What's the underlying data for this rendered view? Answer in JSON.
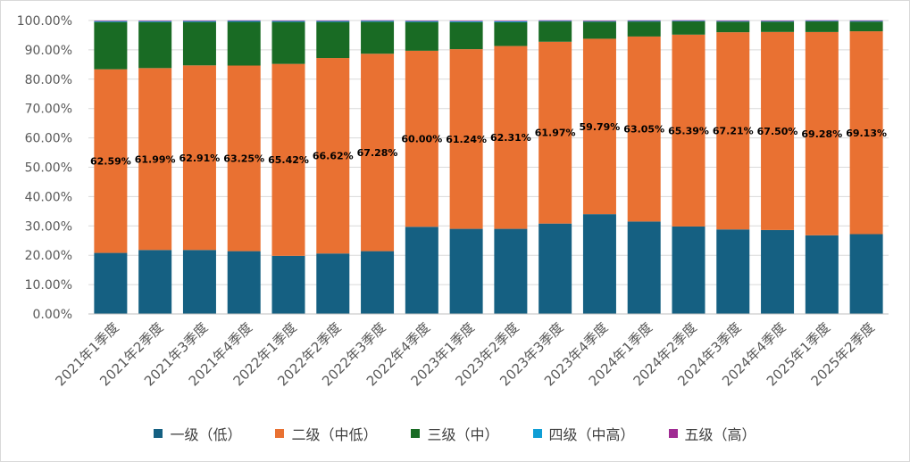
{
  "chart_data": {
    "type": "bar",
    "stacked": true,
    "title": "",
    "xlabel": "",
    "ylabel": "",
    "ylim": [
      0,
      100
    ],
    "yticks": [
      "0.00%",
      "10.00%",
      "20.00%",
      "30.00%",
      "40.00%",
      "50.00%",
      "60.00%",
      "70.00%",
      "80.00%",
      "90.00%",
      "100.00%"
    ],
    "grid": true,
    "legend_position": "bottom",
    "categories": [
      "2021年1季度",
      "2021年2季度",
      "2021年3季度",
      "2021年4季度",
      "2022年1季度",
      "2022年2季度",
      "2022年3季度",
      "2022年4季度",
      "2023年1季度",
      "2023年2季度",
      "2023年3季度",
      "2023年4季度",
      "2024年1季度",
      "2024年2季度",
      "2024年3季度",
      "2024年4季度",
      "2025年1季度",
      "2025年2季度"
    ],
    "series": [
      {
        "name": "一级（低）",
        "color": "#156082",
        "values": [
          20.8,
          21.8,
          21.8,
          21.4,
          19.8,
          20.6,
          21.4,
          29.7,
          29.0,
          29.0,
          30.8,
          34.0,
          31.5,
          29.8,
          28.8,
          28.6,
          26.8,
          27.2
        ]
      },
      {
        "name": "二级（中低）",
        "color": "#E97132",
        "values": [
          62.59,
          61.99,
          62.91,
          63.25,
          65.42,
          66.62,
          67.28,
          60.0,
          61.24,
          62.31,
          61.97,
          59.79,
          63.05,
          65.39,
          67.21,
          67.5,
          69.28,
          69.13
        ]
      },
      {
        "name": "三级（中）",
        "color": "#196B24",
        "values": [
          16.1,
          15.7,
          14.8,
          14.9,
          14.3,
          12.3,
          10.9,
          9.8,
          9.2,
          8.1,
          6.9,
          5.8,
          5.1,
          4.5,
          3.6,
          3.5,
          3.6,
          3.3
        ]
      },
      {
        "name": "四级（中高）",
        "color": "#0F9ED5",
        "values": [
          0.3,
          0.3,
          0.3,
          0.3,
          0.3,
          0.3,
          0.3,
          0.3,
          0.3,
          0.3,
          0.2,
          0.2,
          0.2,
          0.2,
          0.2,
          0.2,
          0.2,
          0.2
        ]
      },
      {
        "name": "五级（高）",
        "color": "#A02B93",
        "values": [
          0.2,
          0.2,
          0.2,
          0.2,
          0.2,
          0.2,
          0.2,
          0.2,
          0.2,
          0.2,
          0.2,
          0.2,
          0.2,
          0.2,
          0.2,
          0.2,
          0.2,
          0.2
        ]
      }
    ],
    "data_labels": {
      "series": "二级（中低）",
      "values": [
        "62.59%",
        "61.99%",
        "62.91%",
        "63.25%",
        "65.42%",
        "66.62%",
        "67.28%",
        "60.00%",
        "61.24%",
        "62.31%",
        "61.97%",
        "59.79%",
        "63.05%",
        "65.39%",
        "67.21%",
        "67.50%",
        "69.28%",
        "69.13%"
      ]
    }
  }
}
